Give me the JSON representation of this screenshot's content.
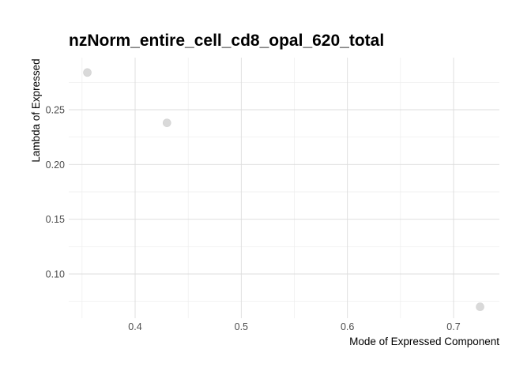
{
  "chart_data": {
    "type": "scatter",
    "title": "nzNorm_entire_cell_cd8_opal_620_total",
    "xlabel": "Mode of Expressed Component",
    "ylabel": "Lambda of Expressed",
    "xlim": [
      0.35,
      0.75
    ],
    "ylim": [
      0.07,
      0.285
    ],
    "x_ticks": [
      0.4,
      0.5,
      0.6,
      0.7
    ],
    "x_tick_labels": [
      "0.4",
      "0.5",
      "0.6",
      "0.7"
    ],
    "y_ticks": [
      0.1,
      0.15,
      0.2,
      0.25
    ],
    "y_tick_labels": [
      "0.10",
      "0.15",
      "0.20",
      "0.25"
    ],
    "grid": true,
    "points": [
      {
        "x": 0.355,
        "y": 0.284
      },
      {
        "x": 0.43,
        "y": 0.238
      },
      {
        "x": 0.725,
        "y": 0.07
      }
    ],
    "point_color": "#d9d9d9"
  }
}
